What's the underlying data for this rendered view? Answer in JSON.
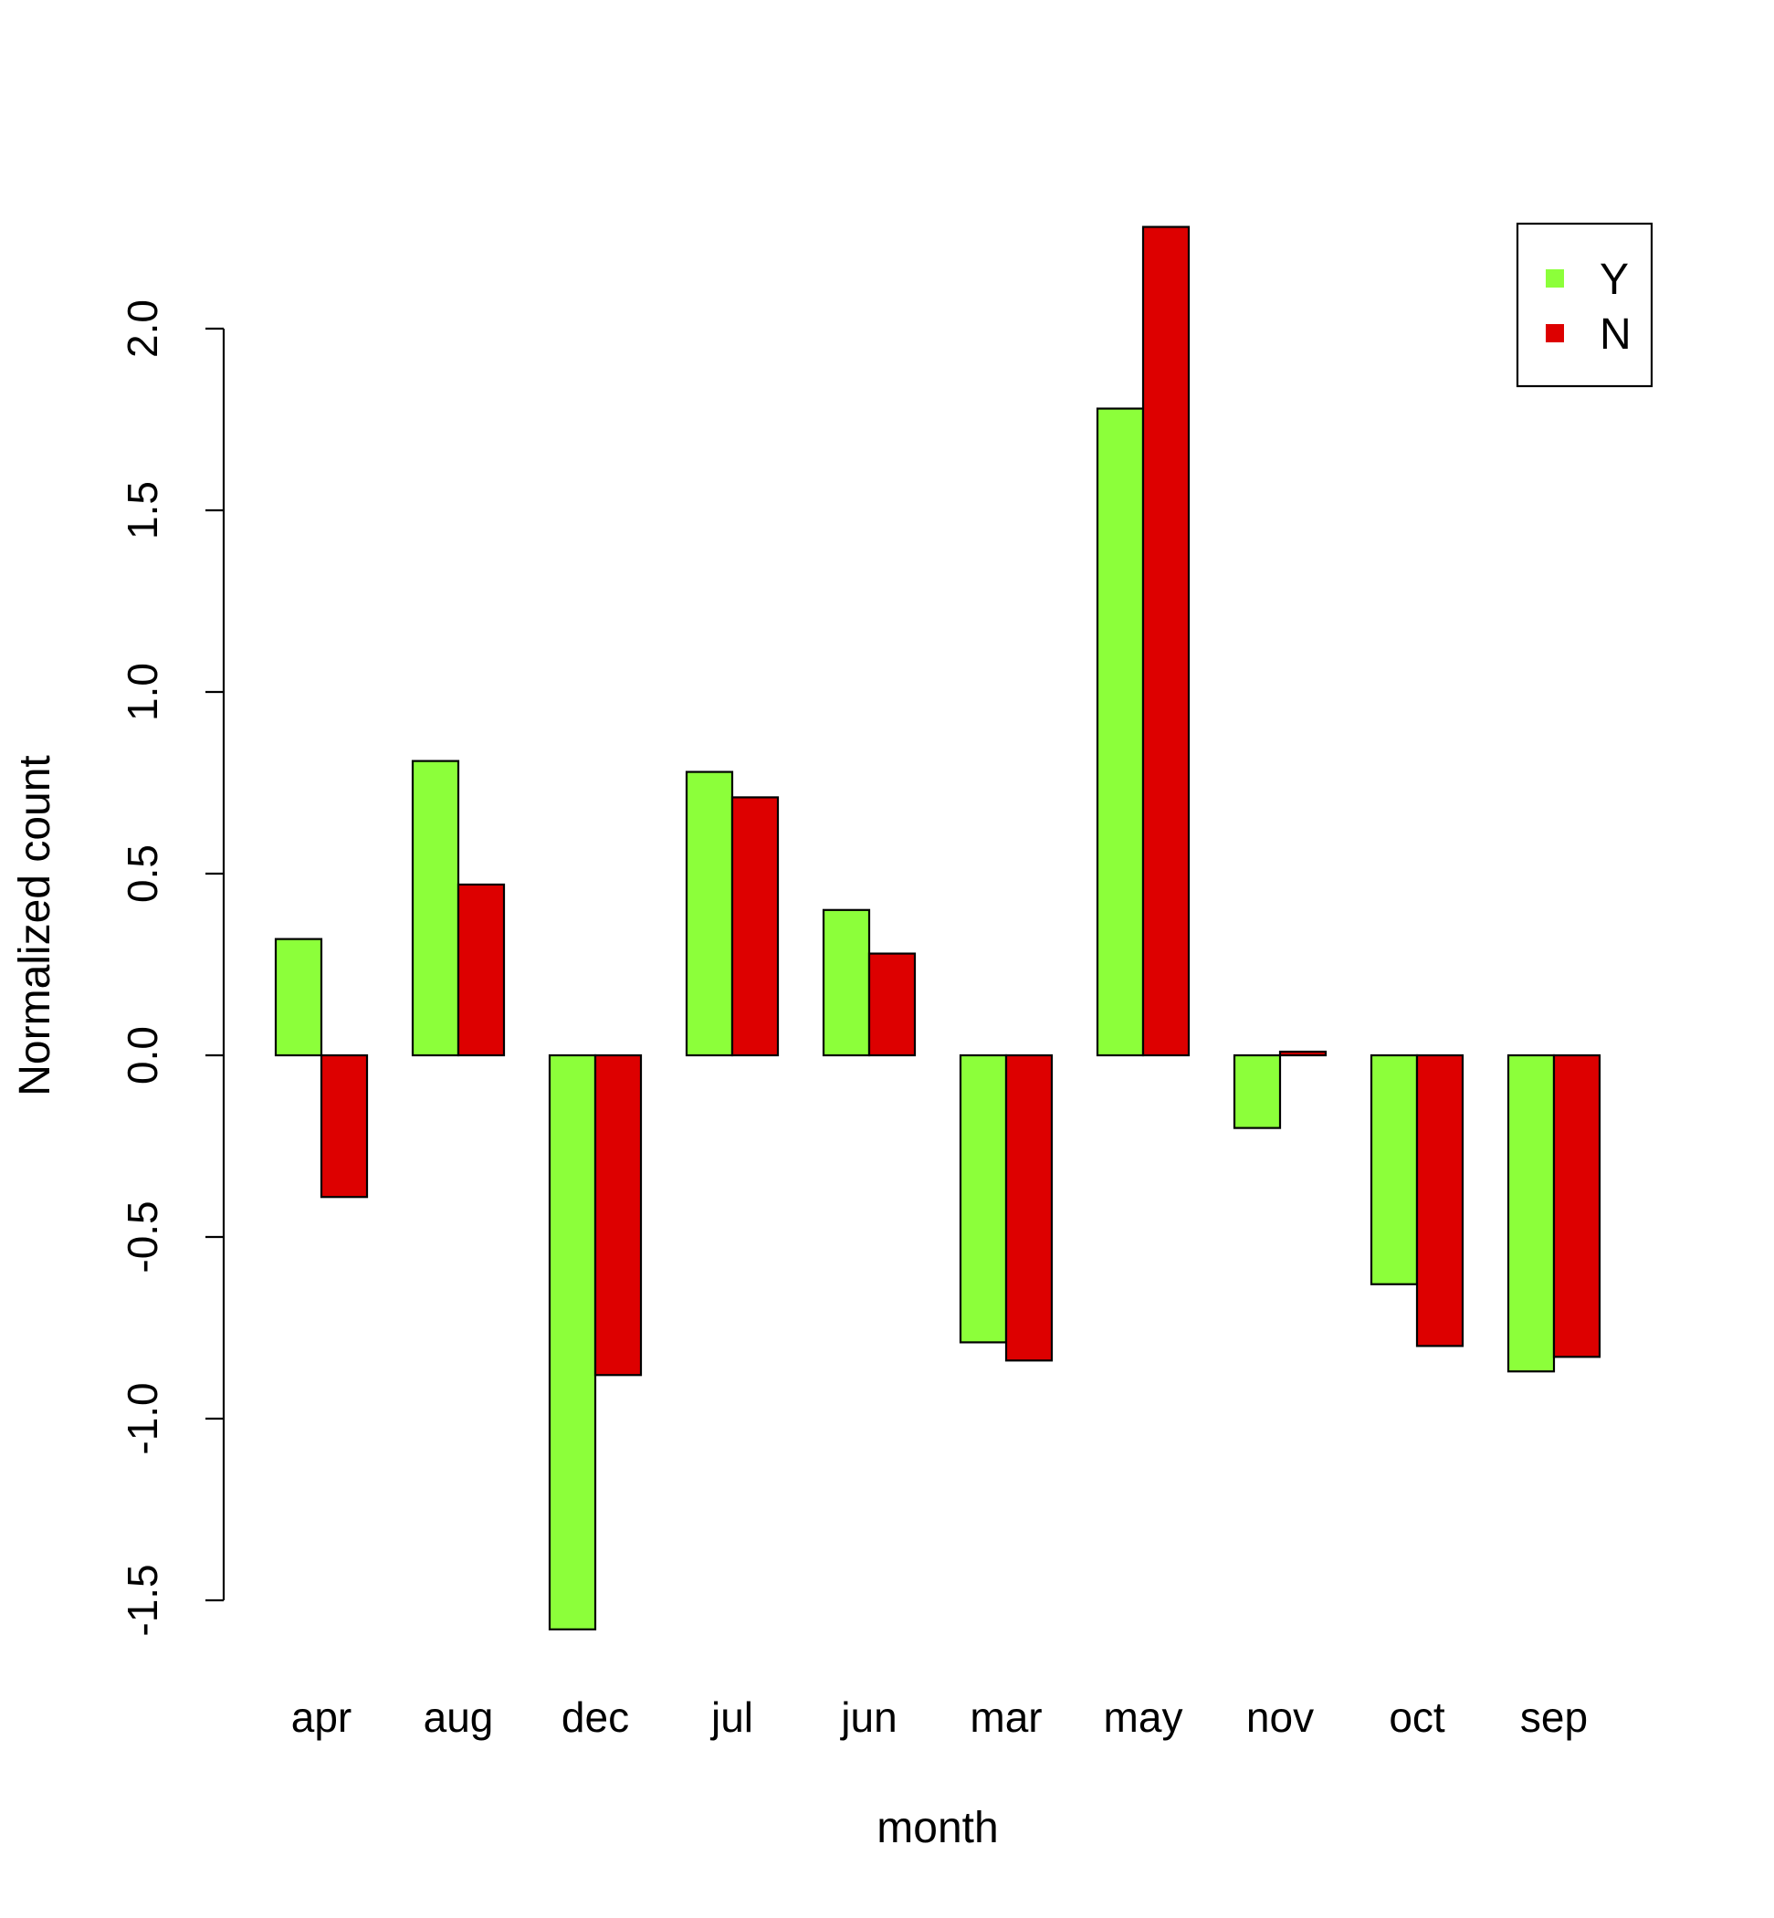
{
  "chart_data": {
    "type": "bar",
    "title": "",
    "xlabel": "month",
    "ylabel": "Normalized count",
    "ylim": [
      -1.5,
      2.3
    ],
    "yticks": [
      -1.5,
      -1.0,
      -0.5,
      0.0,
      0.5,
      1.0,
      1.5,
      2.0
    ],
    "ytick_labels": [
      "-1.5",
      "-1.0",
      "-0.5",
      "0.0",
      "0.5",
      "1.0",
      "1.5",
      "2.0"
    ],
    "categories": [
      "apr",
      "aug",
      "dec",
      "jul",
      "jun",
      "mar",
      "may",
      "nov",
      "oct",
      "sep"
    ],
    "series": [
      {
        "name": "Y",
        "color": "#8cff3a",
        "values": [
          0.32,
          0.81,
          -1.58,
          0.78,
          0.4,
          -0.79,
          1.78,
          -0.2,
          -0.63,
          -0.87
        ]
      },
      {
        "name": "N",
        "color": "#dd0000",
        "values": [
          -0.39,
          0.47,
          -0.88,
          0.71,
          0.28,
          -0.84,
          2.28,
          0.01,
          -0.8,
          -0.83
        ]
      }
    ],
    "legend_position": "top-right",
    "grid": false
  }
}
